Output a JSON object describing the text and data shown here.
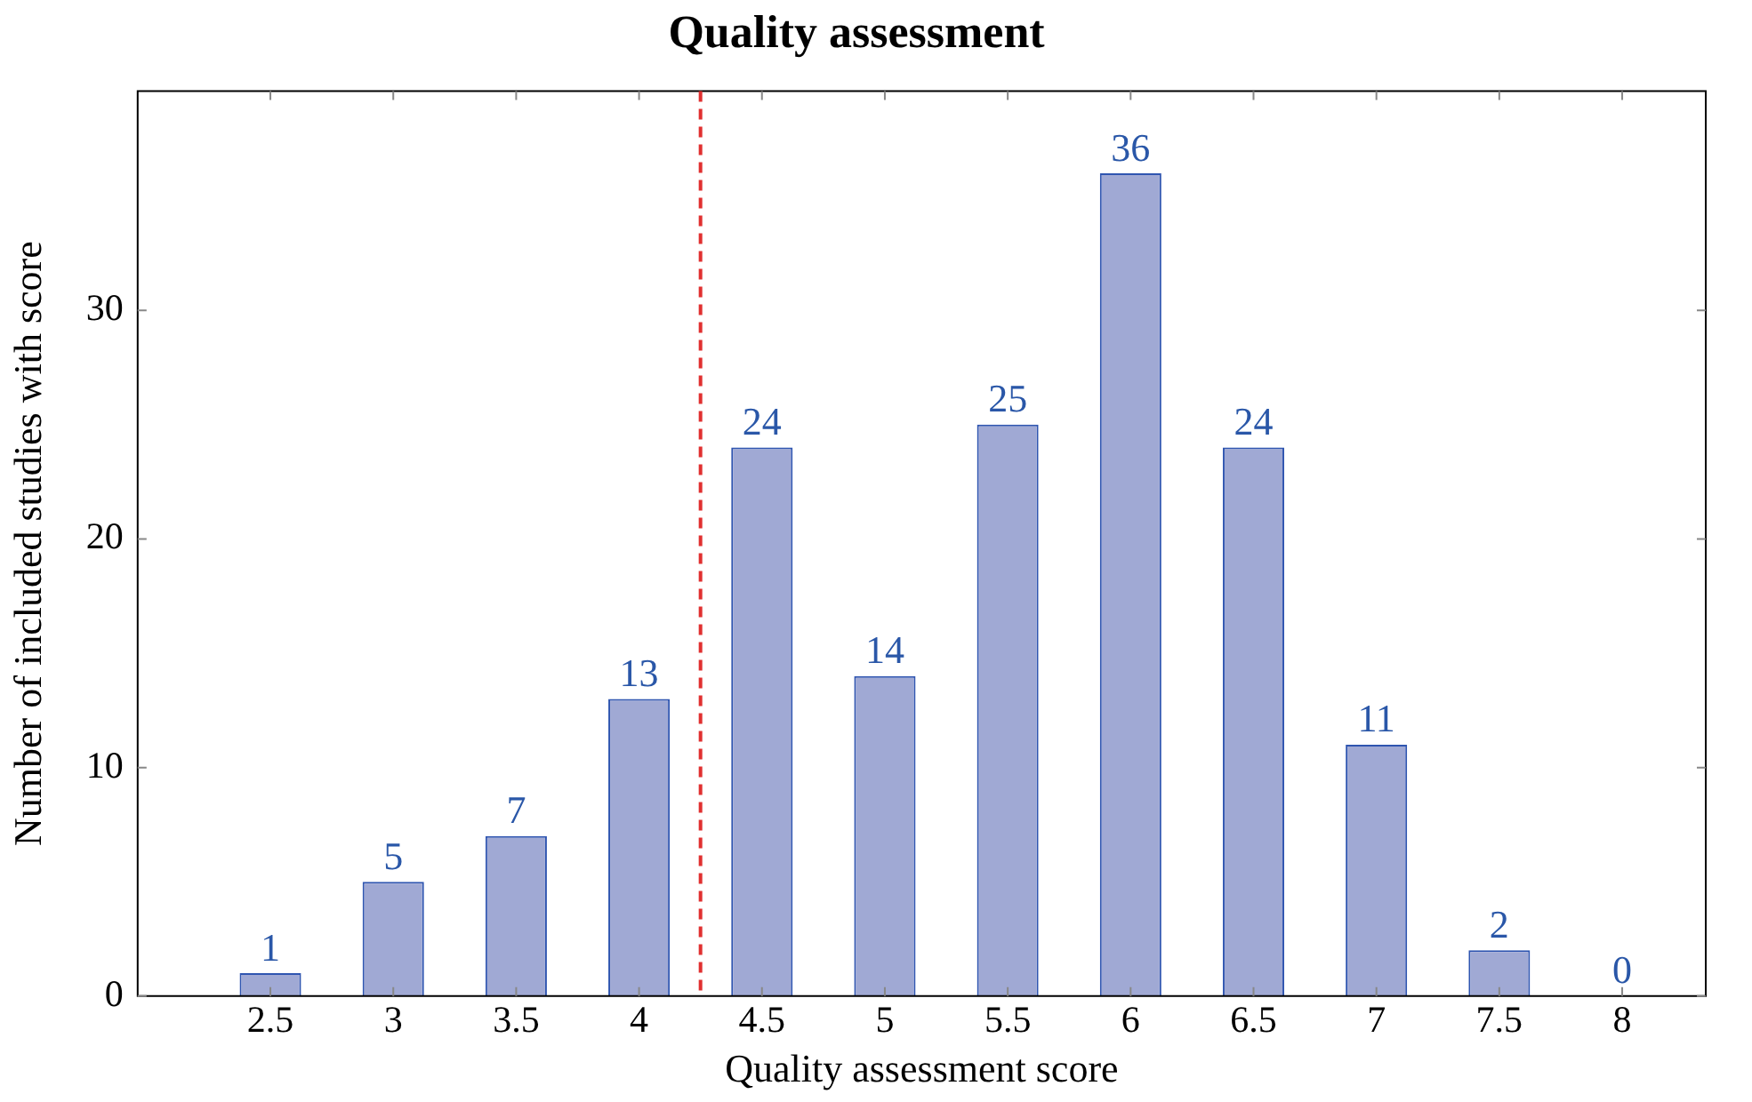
{
  "chart_data": {
    "type": "bar",
    "title": "Quality assessment",
    "xlabel": "Quality assessment score",
    "ylabel": "Number of included studies with score",
    "x": [
      2.5,
      3,
      3.5,
      4,
      4.5,
      5,
      5.5,
      6,
      6.5,
      7,
      7.5,
      8
    ],
    "values": [
      1,
      5,
      7,
      13,
      24,
      14,
      25,
      36,
      24,
      11,
      2,
      0
    ],
    "color": "#a0a9d4",
    "xlim": [
      1.96,
      8.34
    ],
    "xticks": [
      2.5,
      3,
      3.5,
      4,
      4.5,
      5,
      5.5,
      6,
      6.5,
      7,
      7.5,
      8
    ],
    "ylim": [
      0,
      39.6
    ],
    "yticks": [
      0,
      10,
      20,
      30
    ],
    "data_labels": true,
    "ref_lines": [
      {
        "axis": "x",
        "value": 4.25,
        "color": "#e03030",
        "line_style": "dashed"
      }
    ]
  }
}
